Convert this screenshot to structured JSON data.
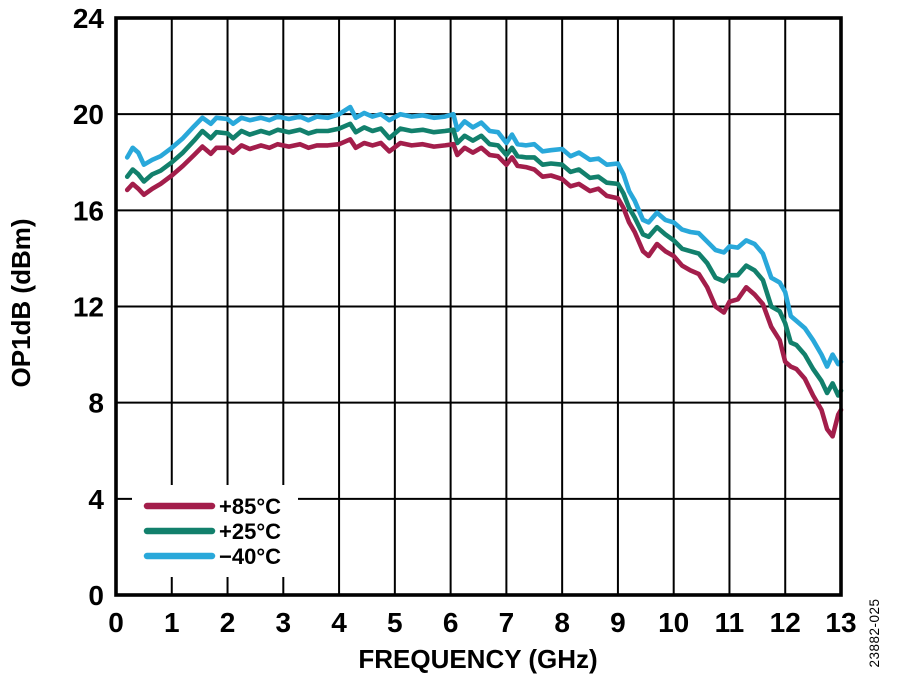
{
  "figure": {
    "watermark": "23882-025"
  },
  "chart_data": {
    "type": "line",
    "title": "",
    "xlabel": "FREQUENCY (GHz)",
    "ylabel": "OP1dB (dBm)",
    "xlim": [
      0,
      13
    ],
    "ylim": [
      0,
      24
    ],
    "x_ticks": [
      0,
      1,
      2,
      3,
      4,
      5,
      6,
      7,
      8,
      9,
      10,
      11,
      12,
      13
    ],
    "y_ticks": [
      0,
      4,
      8,
      12,
      16,
      20,
      24
    ],
    "grid": true,
    "grid_color": "#000000",
    "background_color": "#ffffff",
    "legend_position": "lower-left",
    "series": [
      {
        "name": "+85°C",
        "color": "#A31E4B",
        "points": [
          [
            0.2,
            16.85
          ],
          [
            0.3,
            17.1
          ],
          [
            0.4,
            16.9
          ],
          [
            0.5,
            16.65
          ],
          [
            0.65,
            16.9
          ],
          [
            0.8,
            17.1
          ],
          [
            1.0,
            17.45
          ],
          [
            1.2,
            17.85
          ],
          [
            1.4,
            18.3
          ],
          [
            1.55,
            18.65
          ],
          [
            1.7,
            18.35
          ],
          [
            1.8,
            18.6
          ],
          [
            2.0,
            18.6
          ],
          [
            2.1,
            18.4
          ],
          [
            2.25,
            18.7
          ],
          [
            2.4,
            18.55
          ],
          [
            2.6,
            18.7
          ],
          [
            2.75,
            18.6
          ],
          [
            2.9,
            18.75
          ],
          [
            3.1,
            18.65
          ],
          [
            3.3,
            18.75
          ],
          [
            3.45,
            18.6
          ],
          [
            3.6,
            18.7
          ],
          [
            3.8,
            18.7
          ],
          [
            4.0,
            18.75
          ],
          [
            4.2,
            18.95
          ],
          [
            4.3,
            18.6
          ],
          [
            4.45,
            18.8
          ],
          [
            4.6,
            18.7
          ],
          [
            4.75,
            18.8
          ],
          [
            4.9,
            18.45
          ],
          [
            5.1,
            18.8
          ],
          [
            5.3,
            18.7
          ],
          [
            5.5,
            18.75
          ],
          [
            5.7,
            18.65
          ],
          [
            5.9,
            18.7
          ],
          [
            6.05,
            18.75
          ],
          [
            6.12,
            18.3
          ],
          [
            6.25,
            18.6
          ],
          [
            6.4,
            18.4
          ],
          [
            6.55,
            18.6
          ],
          [
            6.7,
            18.3
          ],
          [
            6.85,
            18.25
          ],
          [
            7.0,
            17.9
          ],
          [
            7.1,
            18.2
          ],
          [
            7.2,
            17.85
          ],
          [
            7.35,
            17.8
          ],
          [
            7.5,
            17.7
          ],
          [
            7.65,
            17.4
          ],
          [
            7.8,
            17.45
          ],
          [
            8.0,
            17.3
          ],
          [
            8.15,
            17.0
          ],
          [
            8.3,
            17.1
          ],
          [
            8.5,
            16.8
          ],
          [
            8.65,
            16.9
          ],
          [
            8.8,
            16.6
          ],
          [
            9.0,
            16.5
          ],
          [
            9.1,
            16.1
          ],
          [
            9.2,
            15.5
          ],
          [
            9.3,
            15.1
          ],
          [
            9.45,
            14.3
          ],
          [
            9.55,
            14.1
          ],
          [
            9.7,
            14.6
          ],
          [
            9.85,
            14.3
          ],
          [
            10.0,
            14.1
          ],
          [
            10.15,
            13.7
          ],
          [
            10.3,
            13.5
          ],
          [
            10.45,
            13.35
          ],
          [
            10.6,
            12.8
          ],
          [
            10.75,
            12.0
          ],
          [
            10.9,
            11.75
          ],
          [
            11.0,
            12.2
          ],
          [
            11.15,
            12.3
          ],
          [
            11.3,
            12.8
          ],
          [
            11.45,
            12.5
          ],
          [
            11.6,
            12.1
          ],
          [
            11.75,
            11.15
          ],
          [
            11.9,
            10.6
          ],
          [
            12.0,
            9.7
          ],
          [
            12.1,
            9.5
          ],
          [
            12.2,
            9.4
          ],
          [
            12.35,
            9.0
          ],
          [
            12.5,
            8.3
          ],
          [
            12.65,
            7.7
          ],
          [
            12.75,
            6.9
          ],
          [
            12.85,
            6.6
          ],
          [
            12.95,
            7.5
          ],
          [
            13.0,
            7.7
          ]
        ]
      },
      {
        "name": "+25°C",
        "color": "#12806C",
        "points": [
          [
            0.2,
            17.4
          ],
          [
            0.3,
            17.7
          ],
          [
            0.4,
            17.5
          ],
          [
            0.5,
            17.2
          ],
          [
            0.65,
            17.5
          ],
          [
            0.8,
            17.65
          ],
          [
            1.0,
            18.0
          ],
          [
            1.2,
            18.4
          ],
          [
            1.4,
            18.9
          ],
          [
            1.55,
            19.3
          ],
          [
            1.7,
            19.0
          ],
          [
            1.8,
            19.25
          ],
          [
            2.0,
            19.2
          ],
          [
            2.1,
            19.0
          ],
          [
            2.25,
            19.3
          ],
          [
            2.4,
            19.15
          ],
          [
            2.6,
            19.3
          ],
          [
            2.75,
            19.2
          ],
          [
            2.9,
            19.35
          ],
          [
            3.1,
            19.25
          ],
          [
            3.3,
            19.35
          ],
          [
            3.45,
            19.2
          ],
          [
            3.6,
            19.3
          ],
          [
            3.8,
            19.3
          ],
          [
            4.0,
            19.4
          ],
          [
            4.2,
            19.6
          ],
          [
            4.3,
            19.25
          ],
          [
            4.45,
            19.45
          ],
          [
            4.6,
            19.3
          ],
          [
            4.75,
            19.4
          ],
          [
            4.9,
            19.0
          ],
          [
            5.1,
            19.4
          ],
          [
            5.3,
            19.3
          ],
          [
            5.5,
            19.35
          ],
          [
            5.7,
            19.25
          ],
          [
            5.9,
            19.3
          ],
          [
            6.05,
            19.35
          ],
          [
            6.12,
            18.8
          ],
          [
            6.25,
            19.1
          ],
          [
            6.4,
            18.9
          ],
          [
            6.55,
            19.1
          ],
          [
            6.7,
            18.75
          ],
          [
            6.85,
            18.7
          ],
          [
            7.0,
            18.3
          ],
          [
            7.1,
            18.6
          ],
          [
            7.2,
            18.25
          ],
          [
            7.35,
            18.2
          ],
          [
            7.5,
            18.2
          ],
          [
            7.65,
            17.9
          ],
          [
            7.8,
            17.95
          ],
          [
            8.0,
            17.9
          ],
          [
            8.15,
            17.6
          ],
          [
            8.3,
            17.7
          ],
          [
            8.5,
            17.35
          ],
          [
            8.65,
            17.4
          ],
          [
            8.8,
            17.15
          ],
          [
            9.0,
            17.1
          ],
          [
            9.1,
            16.7
          ],
          [
            9.2,
            16.1
          ],
          [
            9.3,
            15.7
          ],
          [
            9.45,
            15.0
          ],
          [
            9.55,
            14.9
          ],
          [
            9.7,
            15.3
          ],
          [
            9.85,
            15.0
          ],
          [
            10.0,
            14.75
          ],
          [
            10.15,
            14.4
          ],
          [
            10.3,
            14.3
          ],
          [
            10.45,
            14.2
          ],
          [
            10.6,
            13.8
          ],
          [
            10.75,
            13.2
          ],
          [
            10.9,
            13.05
          ],
          [
            11.0,
            13.3
          ],
          [
            11.15,
            13.3
          ],
          [
            11.3,
            13.7
          ],
          [
            11.45,
            13.5
          ],
          [
            11.6,
            13.1
          ],
          [
            11.75,
            12.0
          ],
          [
            11.9,
            11.8
          ],
          [
            12.0,
            11.3
          ],
          [
            12.1,
            10.5
          ],
          [
            12.2,
            10.4
          ],
          [
            12.35,
            10.0
          ],
          [
            12.5,
            9.4
          ],
          [
            12.65,
            8.9
          ],
          [
            12.75,
            8.4
          ],
          [
            12.85,
            8.8
          ],
          [
            12.95,
            8.3
          ],
          [
            13.0,
            8.5
          ]
        ]
      },
      {
        "name": "−40°C",
        "color": "#29A8DA",
        "points": [
          [
            0.2,
            18.2
          ],
          [
            0.3,
            18.6
          ],
          [
            0.4,
            18.4
          ],
          [
            0.5,
            17.9
          ],
          [
            0.65,
            18.1
          ],
          [
            0.8,
            18.25
          ],
          [
            1.0,
            18.6
          ],
          [
            1.2,
            19.0
          ],
          [
            1.4,
            19.5
          ],
          [
            1.55,
            19.85
          ],
          [
            1.7,
            19.6
          ],
          [
            1.8,
            19.85
          ],
          [
            2.0,
            19.8
          ],
          [
            2.1,
            19.6
          ],
          [
            2.25,
            19.85
          ],
          [
            2.4,
            19.75
          ],
          [
            2.6,
            19.85
          ],
          [
            2.75,
            19.75
          ],
          [
            2.9,
            19.9
          ],
          [
            3.1,
            19.8
          ],
          [
            3.3,
            19.9
          ],
          [
            3.45,
            19.75
          ],
          [
            3.6,
            19.9
          ],
          [
            3.8,
            19.85
          ],
          [
            4.0,
            20.0
          ],
          [
            4.2,
            20.3
          ],
          [
            4.3,
            19.85
          ],
          [
            4.45,
            20.05
          ],
          [
            4.6,
            19.9
          ],
          [
            4.75,
            20.0
          ],
          [
            4.9,
            19.75
          ],
          [
            5.1,
            20.0
          ],
          [
            5.3,
            19.9
          ],
          [
            5.5,
            19.95
          ],
          [
            5.7,
            19.85
          ],
          [
            5.9,
            19.9
          ],
          [
            6.05,
            20.0
          ],
          [
            6.12,
            19.35
          ],
          [
            6.25,
            19.7
          ],
          [
            6.4,
            19.45
          ],
          [
            6.55,
            19.65
          ],
          [
            6.7,
            19.3
          ],
          [
            6.85,
            19.25
          ],
          [
            7.0,
            18.8
          ],
          [
            7.1,
            19.15
          ],
          [
            7.2,
            18.75
          ],
          [
            7.35,
            18.7
          ],
          [
            7.5,
            18.75
          ],
          [
            7.65,
            18.45
          ],
          [
            7.8,
            18.5
          ],
          [
            8.0,
            18.55
          ],
          [
            8.15,
            18.25
          ],
          [
            8.3,
            18.4
          ],
          [
            8.5,
            18.1
          ],
          [
            8.65,
            18.15
          ],
          [
            8.8,
            17.9
          ],
          [
            9.0,
            17.95
          ],
          [
            9.1,
            17.5
          ],
          [
            9.2,
            16.8
          ],
          [
            9.3,
            16.4
          ],
          [
            9.45,
            15.6
          ],
          [
            9.55,
            15.5
          ],
          [
            9.7,
            15.9
          ],
          [
            9.85,
            15.6
          ],
          [
            10.0,
            15.5
          ],
          [
            10.15,
            15.2
          ],
          [
            10.3,
            15.1
          ],
          [
            10.45,
            15.05
          ],
          [
            10.6,
            14.7
          ],
          [
            10.75,
            14.35
          ],
          [
            10.9,
            14.25
          ],
          [
            11.0,
            14.5
          ],
          [
            11.15,
            14.45
          ],
          [
            11.3,
            14.75
          ],
          [
            11.45,
            14.6
          ],
          [
            11.6,
            14.2
          ],
          [
            11.75,
            13.2
          ],
          [
            11.9,
            13.0
          ],
          [
            12.0,
            12.6
          ],
          [
            12.1,
            11.6
          ],
          [
            12.2,
            11.4
          ],
          [
            12.35,
            11.1
          ],
          [
            12.5,
            10.6
          ],
          [
            12.65,
            10.0
          ],
          [
            12.75,
            9.5
          ],
          [
            12.85,
            10.0
          ],
          [
            12.95,
            9.6
          ],
          [
            13.0,
            9.7
          ]
        ]
      }
    ]
  }
}
